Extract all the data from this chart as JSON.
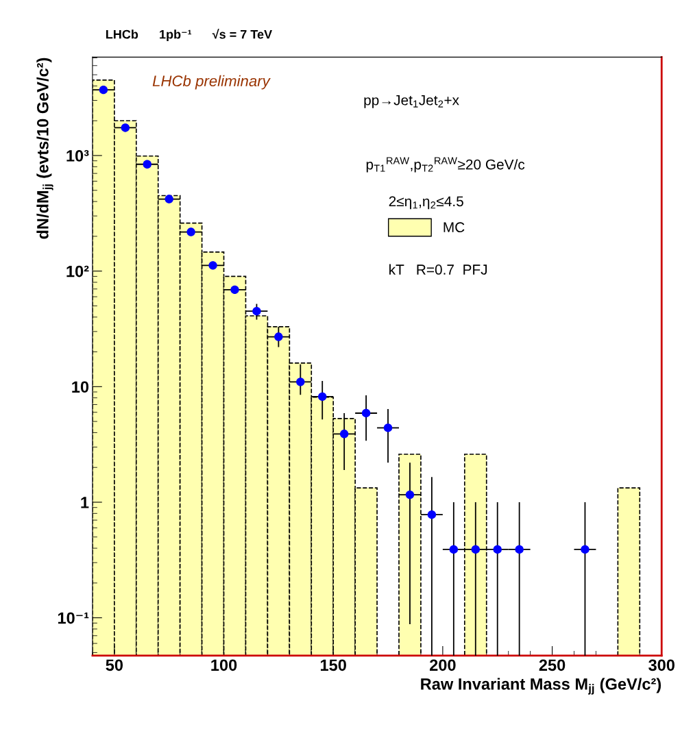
{
  "chart_data": {
    "type": "histogram",
    "title": "LHCb      1pb⁻¹      √s = 7 TeV",
    "xlabel": "Raw Invariant Mass M$_{jj}$ (GeV/c²)",
    "ylabel": "dN/dM$_{jj}$ (evts/10 GeV/c²)",
    "annotations": [
      "LHCb preliminary",
      "pp→Jet$_{1}$Jet$_{2}$+x",
      "p$_{T1}$$^{RAW}$,p$_{T2}$$^{RAW}$≥20 GeV/c",
      "2≤η$_{1}$,η$_{2}$≤4.5",
      "kT   R=0.7  PFJ"
    ],
    "series": [
      {
        "type": "histogram",
        "name": "MC",
        "color": "#ffffb0",
        "line_style": "dashed",
        "bins": [
          40,
          50,
          60,
          70,
          80,
          90,
          100,
          110,
          120,
          130,
          140,
          150,
          160,
          170,
          180,
          190,
          200,
          210,
          220,
          230,
          240,
          250,
          260,
          270,
          280,
          290
        ],
        "values": [
          4500,
          2000,
          990,
          450,
          260,
          146,
          90,
          41,
          33,
          16,
          8.1,
          5.3,
          1.33,
          null,
          2.6,
          null,
          null,
          2.6,
          null,
          null,
          null,
          null,
          null,
          null,
          1.33
        ]
      },
      {
        "type": "scatter",
        "color": "#0000ff",
        "marker": "circle",
        "x": [
          45,
          55,
          65,
          75,
          85,
          95,
          105,
          115,
          125,
          135,
          145,
          155,
          165,
          175,
          185,
          195,
          205,
          215,
          225,
          235,
          265
        ],
        "values": [
          3700,
          1740,
          840,
          420,
          218,
          112,
          69,
          45,
          27,
          11,
          8.2,
          3.9,
          5.9,
          4.4,
          1.16,
          0.78,
          0.39,
          0.39,
          0.39,
          0.39,
          0.39
        ],
        "errors": [
          null,
          null,
          null,
          null,
          null,
          null,
          null,
          [
            38,
            52
          ],
          [
            22,
            33
          ],
          [
            8.5,
            15.6
          ],
          [
            5.2,
            11.2
          ],
          [
            1.9,
            5.9
          ],
          [
            3.4,
            8.4
          ],
          [
            2.2,
            6.4
          ],
          [
            0.088,
            2.2
          ],
          [
            0.047,
            1.65
          ],
          [
            0.047,
            1.0
          ],
          [
            0.047,
            1.0
          ],
          [
            0.047,
            1.0
          ],
          [
            0.047,
            1.0
          ],
          [
            0.047,
            1.0
          ]
        ],
        "xerrors": [
          5,
          5,
          5,
          5,
          5,
          5,
          5,
          5,
          5,
          5,
          5,
          5,
          5,
          5,
          5,
          5,
          5,
          5,
          5,
          5,
          5
        ]
      }
    ],
    "log": "y",
    "xlim": [
      40,
      300
    ],
    "ylim": [
      0.047,
      7100
    ],
    "xticks": [
      50,
      100,
      150,
      200,
      250,
      300
    ],
    "yticks": [
      {
        "value": 0.1,
        "label": "10⁻¹"
      },
      1,
      10,
      {
        "value": 100,
        "label": "10²"
      },
      {
        "value": 1000,
        "label": "10³"
      }
    ],
    "grid": false,
    "legend": "top right"
  }
}
